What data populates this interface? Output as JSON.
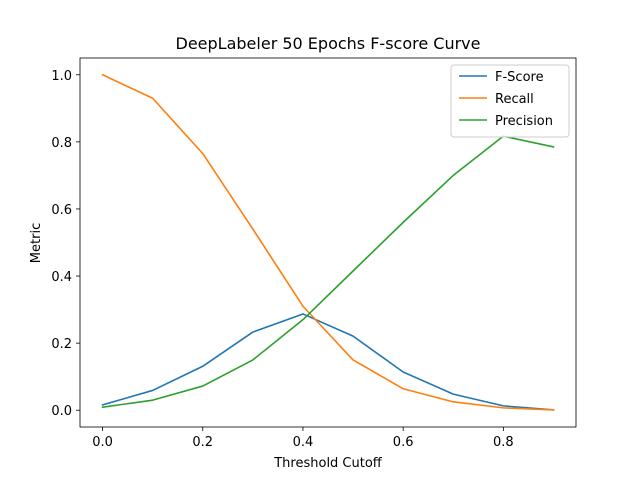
{
  "chart_data": {
    "type": "line",
    "title": "DeepLabeler 50 Epochs F-score Curve",
    "xlabel": "Threshold Cutoff",
    "ylabel": "Metric",
    "x": [
      0.0,
      0.1,
      0.2,
      0.3,
      0.4,
      0.5,
      0.6,
      0.7,
      0.8,
      0.9
    ],
    "xlim": [
      -0.045,
      0.945
    ],
    "ylim": [
      -0.05,
      1.05
    ],
    "xticks": [
      "0.0",
      "0.2",
      "0.4",
      "0.6",
      "0.8"
    ],
    "yticks": [
      "0.0",
      "0.2",
      "0.4",
      "0.6",
      "0.8",
      "1.0"
    ],
    "grid": false,
    "legend_position": "top-right",
    "series": [
      {
        "name": "F-Score",
        "color": "#1f77b4",
        "values": [
          0.016,
          0.059,
          0.131,
          0.233,
          0.287,
          0.221,
          0.114,
          0.048,
          0.013,
          0.001
        ]
      },
      {
        "name": "Recall",
        "color": "#ff7f0e",
        "values": [
          1.0,
          0.93,
          0.765,
          0.54,
          0.31,
          0.15,
          0.064,
          0.025,
          0.007,
          0.001
        ]
      },
      {
        "name": "Precision",
        "color": "#2ca02c",
        "values": [
          0.009,
          0.03,
          0.072,
          0.15,
          0.27,
          0.415,
          0.56,
          0.7,
          0.817,
          0.785
        ]
      }
    ]
  }
}
